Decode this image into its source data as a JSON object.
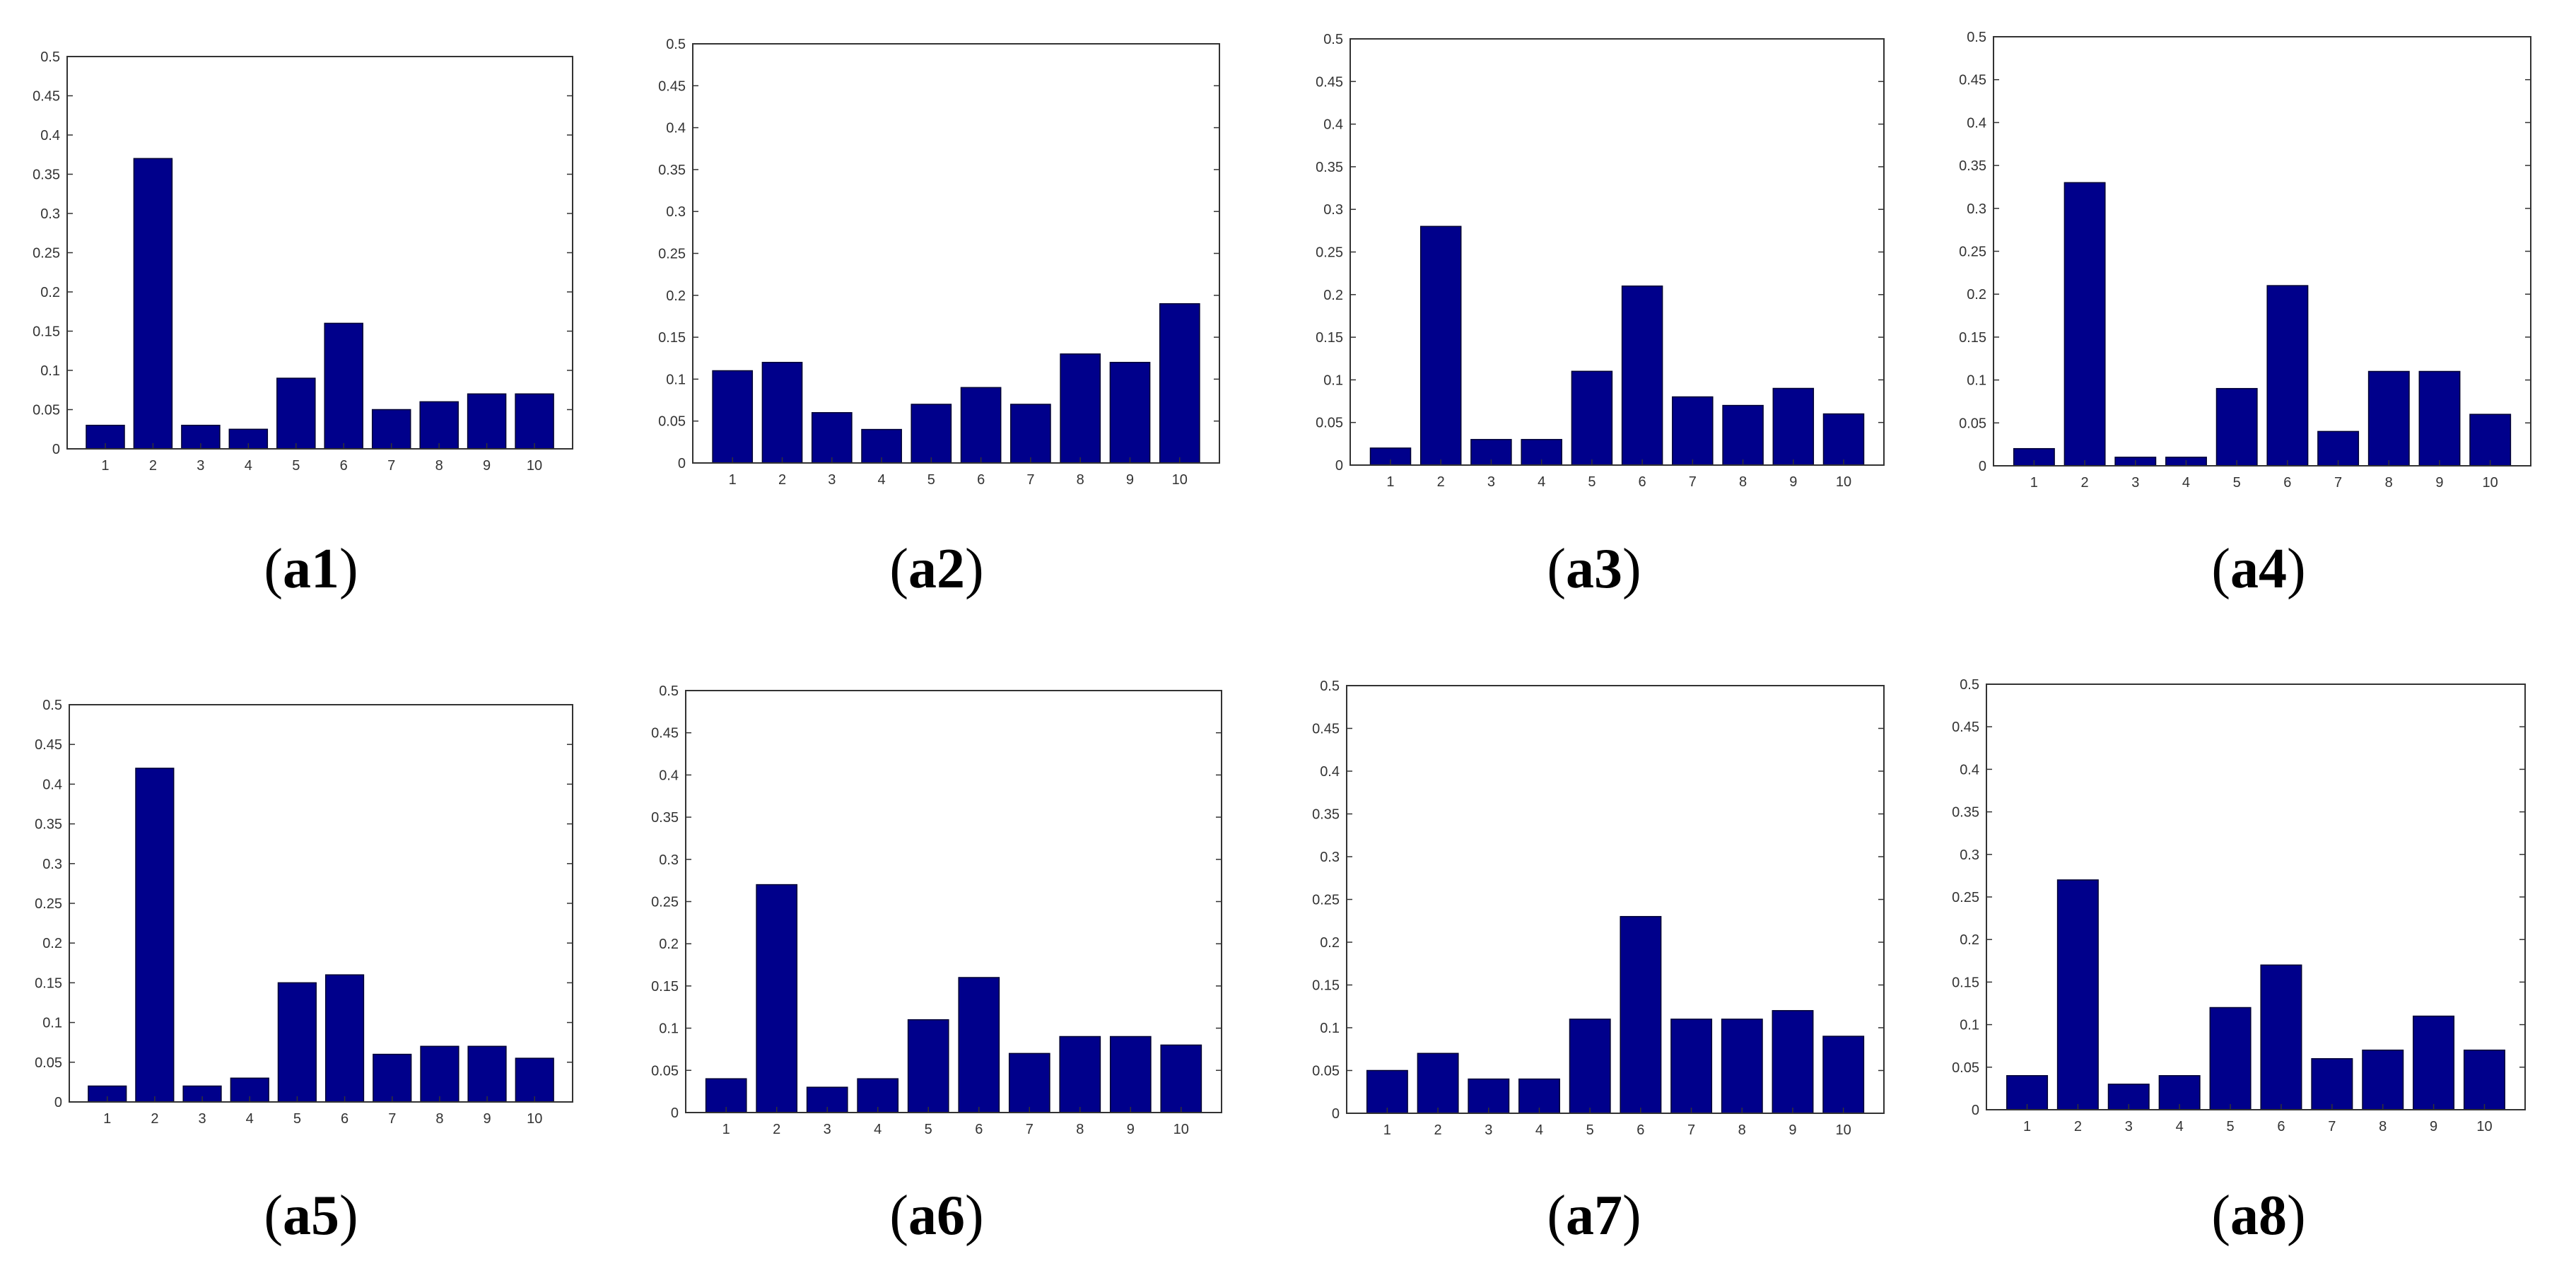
{
  "figure": {
    "bar_color": "#00008b",
    "axis_color": "#333333",
    "caption_open": "(",
    "caption_close": ")"
  },
  "chart_data": [
    {
      "type": "bar",
      "caption": "a1",
      "categories": [
        "1",
        "2",
        "3",
        "4",
        "5",
        "6",
        "7",
        "8",
        "9",
        "10"
      ],
      "values": [
        0.03,
        0.37,
        0.03,
        0.025,
        0.09,
        0.16,
        0.05,
        0.06,
        0.07,
        0.07
      ],
      "ylim": [
        0,
        0.5
      ],
      "yticks": [
        "0",
        "0.05",
        "0.1",
        "0.15",
        "0.2",
        "0.25",
        "0.3",
        "0.35",
        "0.4",
        "0.45",
        "0.5"
      ],
      "grid": false
    },
    {
      "type": "bar",
      "caption": "a2",
      "categories": [
        "1",
        "2",
        "3",
        "4",
        "5",
        "6",
        "7",
        "8",
        "9",
        "10"
      ],
      "values": [
        0.11,
        0.12,
        0.06,
        0.04,
        0.07,
        0.09,
        0.07,
        0.13,
        0.12,
        0.19
      ],
      "ylim": [
        0,
        0.5
      ],
      "yticks": [
        "0",
        "0.05",
        "0.1",
        "0.15",
        "0.2",
        "0.25",
        "0.3",
        "0.35",
        "0.4",
        "0.45",
        "0.5"
      ],
      "grid": false
    },
    {
      "type": "bar",
      "caption": "a3",
      "categories": [
        "1",
        "2",
        "3",
        "4",
        "5",
        "6",
        "7",
        "8",
        "9",
        "10"
      ],
      "values": [
        0.02,
        0.28,
        0.03,
        0.03,
        0.11,
        0.21,
        0.08,
        0.07,
        0.09,
        0.06
      ],
      "ylim": [
        0,
        0.5
      ],
      "yticks": [
        "0",
        "0.05",
        "0.1",
        "0.15",
        "0.2",
        "0.25",
        "0.3",
        "0.35",
        "0.4",
        "0.45",
        "0.5"
      ],
      "grid": false
    },
    {
      "type": "bar",
      "caption": "a4",
      "categories": [
        "1",
        "2",
        "3",
        "4",
        "5",
        "6",
        "7",
        "8",
        "9",
        "10"
      ],
      "values": [
        0.02,
        0.33,
        0.01,
        0.01,
        0.09,
        0.21,
        0.04,
        0.11,
        0.11,
        0.06
      ],
      "ylim": [
        0,
        0.5
      ],
      "yticks": [
        "0",
        "0.05",
        "0.1",
        "0.15",
        "0.2",
        "0.25",
        "0.3",
        "0.35",
        "0.4",
        "0.45",
        "0.5"
      ],
      "grid": false
    },
    {
      "type": "bar",
      "caption": "a5",
      "categories": [
        "1",
        "2",
        "3",
        "4",
        "5",
        "6",
        "7",
        "8",
        "9",
        "10"
      ],
      "values": [
        0.02,
        0.42,
        0.02,
        0.03,
        0.15,
        0.16,
        0.06,
        0.07,
        0.07,
        0.055
      ],
      "ylim": [
        0,
        0.5
      ],
      "yticks": [
        "0",
        "0.05",
        "0.1",
        "0.15",
        "0.2",
        "0.25",
        "0.3",
        "0.35",
        "0.4",
        "0.45",
        "0.5"
      ],
      "grid": false
    },
    {
      "type": "bar",
      "caption": "a6",
      "categories": [
        "1",
        "2",
        "3",
        "4",
        "5",
        "6",
        "7",
        "8",
        "9",
        "10"
      ],
      "values": [
        0.04,
        0.27,
        0.03,
        0.04,
        0.11,
        0.16,
        0.07,
        0.09,
        0.09,
        0.08
      ],
      "ylim": [
        0,
        0.5
      ],
      "yticks": [
        "0",
        "0.05",
        "0.1",
        "0.15",
        "0.2",
        "0.25",
        "0.3",
        "0.35",
        "0.4",
        "0.45",
        "0.5"
      ],
      "grid": false
    },
    {
      "type": "bar",
      "caption": "a7",
      "categories": [
        "1",
        "2",
        "3",
        "4",
        "5",
        "6",
        "7",
        "8",
        "9",
        "10"
      ],
      "values": [
        0.05,
        0.07,
        0.04,
        0.04,
        0.11,
        0.23,
        0.11,
        0.11,
        0.12,
        0.09
      ],
      "ylim": [
        0,
        0.5
      ],
      "yticks": [
        "0",
        "0.05",
        "0.1",
        "0.15",
        "0.2",
        "0.25",
        "0.3",
        "0.35",
        "0.4",
        "0.45",
        "0.5"
      ],
      "grid": false
    },
    {
      "type": "bar",
      "caption": "a8",
      "categories": [
        "1",
        "2",
        "3",
        "4",
        "5",
        "6",
        "7",
        "8",
        "9",
        "10"
      ],
      "values": [
        0.04,
        0.27,
        0.03,
        0.04,
        0.12,
        0.17,
        0.06,
        0.07,
        0.11,
        0.07
      ],
      "ylim": [
        0,
        0.5
      ],
      "yticks": [
        "0",
        "0.05",
        "0.1",
        "0.15",
        "0.2",
        "0.25",
        "0.3",
        "0.35",
        "0.4",
        "0.45",
        "0.5"
      ],
      "grid": false
    }
  ]
}
